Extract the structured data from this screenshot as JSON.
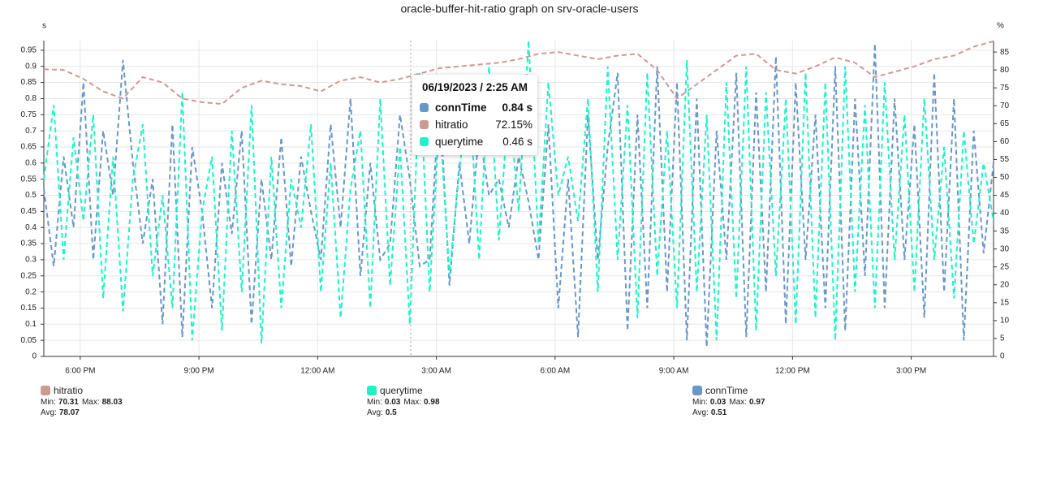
{
  "chart_data": {
    "type": "line",
    "title": "oracle-buffer-hit-ratio graph on srv-oracle-users",
    "y_label": "s",
    "y2_label": "%",
    "xlim": [
      17.08,
      41.08
    ],
    "xticks": [
      {
        "value": 18,
        "label": "6:00 PM"
      },
      {
        "value": 21,
        "label": "9:00 PM"
      },
      {
        "value": 24,
        "label": "12:00 AM"
      },
      {
        "value": 27,
        "label": "3:00 AM"
      },
      {
        "value": 30,
        "label": "6:00 AM"
      },
      {
        "value": 33,
        "label": "9:00 AM"
      },
      {
        "value": 36,
        "label": "12:00 PM"
      },
      {
        "value": 39,
        "label": "3:00 PM"
      }
    ],
    "ylim": [
      0,
      0.98
    ],
    "yticks": [
      0,
      0.05,
      0.1,
      0.15,
      0.2,
      0.25,
      0.3,
      0.35,
      0.4,
      0.45,
      0.5,
      0.55,
      0.6,
      0.65,
      0.7,
      0.75,
      0.8,
      0.85,
      0.9,
      0.95
    ],
    "y2lim": [
      0,
      88.2
    ],
    "y2ticks": [
      0,
      5,
      10,
      15,
      20,
      25,
      30,
      35,
      40,
      45,
      50,
      55,
      60,
      65,
      70,
      75,
      80,
      85
    ],
    "grid": true,
    "series": [
      {
        "name": "hitratio",
        "color": "#cc9a93",
        "axis": "y2",
        "stats": [
          {
            "label": "Min:",
            "value": 70.31
          },
          {
            "label": "Max:",
            "value": 88.03
          },
          {
            "label": "Avg:",
            "value": 78.07
          }
        ],
        "x": [
          17.08,
          17.58,
          18.08,
          18.58,
          19.08,
          19.58,
          20.08,
          20.58,
          21.08,
          21.58,
          22.08,
          22.58,
          23.08,
          23.58,
          24.08,
          24.58,
          25.08,
          25.58,
          26.08,
          26.58,
          27.08,
          27.58,
          28.08,
          28.58,
          29.08,
          29.58,
          30.08,
          30.58,
          31.08,
          31.58,
          32.08,
          32.58,
          33.08,
          33.58,
          34.08,
          34.58,
          35.08,
          35.58,
          36.08,
          36.58,
          37.08,
          37.58,
          38.08,
          38.58,
          39.08,
          39.58,
          40.08,
          40.58,
          41.08
        ],
        "values": [
          80.2,
          80,
          77.5,
          74,
          72,
          78,
          76.5,
          72,
          71,
          70.5,
          75,
          77,
          76,
          75.5,
          74,
          77,
          78,
          76.5,
          77.5,
          79,
          80.5,
          81,
          81.5,
          82,
          83,
          84.5,
          85,
          84,
          83,
          84,
          84.5,
          80,
          72,
          76,
          80,
          84,
          84.5,
          80,
          79,
          81,
          83.5,
          82,
          78,
          79.5,
          81,
          83,
          84,
          86.5,
          88
        ]
      },
      {
        "name": "querytime",
        "color": "#1ef2c6",
        "stats": [
          {
            "label": "Min:",
            "value": 0.03
          },
          {
            "label": "Max:",
            "value": 0.98
          },
          {
            "label": "Avg:",
            "value": 0.5
          }
        ],
        "x": [
          17.08,
          17.33,
          17.58,
          17.83,
          18.08,
          18.33,
          18.58,
          18.83,
          19.08,
          19.33,
          19.58,
          19.83,
          20.08,
          20.33,
          20.58,
          20.83,
          21.08,
          21.33,
          21.58,
          21.83,
          22.08,
          22.33,
          22.58,
          22.83,
          23.08,
          23.33,
          23.58,
          23.83,
          24.08,
          24.33,
          24.58,
          24.83,
          25.08,
          25.33,
          25.58,
          25.83,
          26.08,
          26.33,
          26.58,
          26.83,
          27.08,
          27.33,
          27.58,
          27.83,
          28.08,
          28.33,
          28.58,
          28.83,
          29.08,
          29.33,
          29.58,
          29.83,
          30.08,
          30.33,
          30.58,
          30.83,
          31.08,
          31.33,
          31.58,
          31.83,
          32.08,
          32.33,
          32.58,
          32.83,
          33.08,
          33.33,
          33.58,
          33.83,
          34.08,
          34.33,
          34.58,
          34.83,
          35.08,
          35.33,
          35.58,
          35.83,
          36.08,
          36.33,
          36.58,
          36.83,
          37.08,
          37.33,
          37.58,
          37.83,
          38.08,
          38.33,
          38.58,
          38.83,
          39.08,
          39.33,
          39.58,
          39.83,
          40.08,
          40.33,
          40.58,
          40.83,
          41.08
        ],
        "values": [
          0.55,
          0.78,
          0.3,
          0.68,
          0.42,
          0.75,
          0.18,
          0.62,
          0.14,
          0.55,
          0.72,
          0.25,
          0.5,
          0.15,
          0.82,
          0.05,
          0.45,
          0.62,
          0.08,
          0.7,
          0.2,
          0.78,
          0.04,
          0.62,
          0.15,
          0.55,
          0.4,
          0.72,
          0.2,
          0.6,
          0.12,
          0.52,
          0.7,
          0.15,
          0.8,
          0.22,
          0.65,
          0.1,
          0.88,
          0.2,
          0.75,
          0.25,
          0.58,
          0.82,
          0.3,
          0.9,
          0.36,
          0.8,
          0.45,
          0.98,
          0.35,
          0.85,
          0.5,
          0.62,
          0.42,
          0.8,
          0.2,
          0.9,
          0.3,
          0.78,
          0.12,
          0.88,
          0.25,
          0.7,
          0.15,
          0.92,
          0.2,
          0.75,
          0.05,
          0.85,
          0.18,
          0.9,
          0.08,
          0.82,
          0.25,
          0.8,
          0.1,
          0.88,
          0.12,
          0.85,
          0.05,
          0.9,
          0.2,
          0.78,
          0.15,
          0.85,
          0.3,
          0.75,
          0.2,
          0.8,
          0.3,
          0.65,
          0.18,
          0.7,
          0.35,
          0.6,
          0.42
        ]
      },
      {
        "name": "connTime",
        "color": "#6897c8",
        "stats": [
          {
            "label": "Min:",
            "value": 0.03
          },
          {
            "label": "Max:",
            "value": 0.97
          },
          {
            "label": "Avg:",
            "value": 0.51
          }
        ],
        "x": [
          17.08,
          17.33,
          17.58,
          17.83,
          18.08,
          18.33,
          18.58,
          18.83,
          19.08,
          19.33,
          19.58,
          19.83,
          20.08,
          20.33,
          20.58,
          20.83,
          21.08,
          21.33,
          21.58,
          21.83,
          22.08,
          22.33,
          22.58,
          22.83,
          23.08,
          23.33,
          23.58,
          23.83,
          24.08,
          24.33,
          24.58,
          24.83,
          25.08,
          25.33,
          25.58,
          25.83,
          26.08,
          26.33,
          26.58,
          26.83,
          27.08,
          27.33,
          27.58,
          27.83,
          28.08,
          28.33,
          28.58,
          28.83,
          29.08,
          29.33,
          29.58,
          29.83,
          30.08,
          30.33,
          30.58,
          30.83,
          31.08,
          31.33,
          31.58,
          31.83,
          32.08,
          32.33,
          32.58,
          32.83,
          33.08,
          33.33,
          33.58,
          33.83,
          34.08,
          34.33,
          34.58,
          34.83,
          35.08,
          35.33,
          35.58,
          35.83,
          36.08,
          36.33,
          36.58,
          36.83,
          37.08,
          37.33,
          37.58,
          37.83,
          38.08,
          38.33,
          38.58,
          38.83,
          39.08,
          39.33,
          39.58,
          39.83,
          40.08,
          40.33,
          40.58,
          40.83,
          41.08
        ],
        "values": [
          0.52,
          0.28,
          0.62,
          0.4,
          0.85,
          0.3,
          0.7,
          0.5,
          0.92,
          0.6,
          0.35,
          0.55,
          0.1,
          0.72,
          0.06,
          0.65,
          0.45,
          0.15,
          0.6,
          0.38,
          0.7,
          0.1,
          0.55,
          0.3,
          0.68,
          0.28,
          0.62,
          0.45,
          0.3,
          0.72,
          0.4,
          0.8,
          0.25,
          0.6,
          0.3,
          0.35,
          0.75,
          0.55,
          0.28,
          0.3,
          0.82,
          0.22,
          0.6,
          0.35,
          0.7,
          0.5,
          0.55,
          0.4,
          0.62,
          0.48,
          0.3,
          0.72,
          0.15,
          0.55,
          0.06,
          0.75,
          0.3,
          0.65,
          0.88,
          0.08,
          0.75,
          0.15,
          0.9,
          0.2,
          0.85,
          0.05,
          0.8,
          0.03,
          0.7,
          0.3,
          0.88,
          0.06,
          0.82,
          0.2,
          0.93,
          0.1,
          0.85,
          0.3,
          0.75,
          0.15,
          0.9,
          0.08,
          0.8,
          0.25,
          0.97,
          0.15,
          0.8,
          0.3,
          0.72,
          0.12,
          0.88,
          0.2,
          0.8,
          0.05,
          0.7,
          0.32,
          0.6
        ]
      }
    ],
    "tooltip": {
      "title": "06/19/2023 / 2:25 AM",
      "items": [
        {
          "name": "connTime",
          "value": "0.84 s",
          "color": "#6897c8"
        },
        {
          "name": "hitratio",
          "value": "72.15%",
          "color": "#cc9a93"
        },
        {
          "name": "querytime",
          "value": "0.46 s",
          "color": "#1ef2c6"
        }
      ]
    }
  }
}
